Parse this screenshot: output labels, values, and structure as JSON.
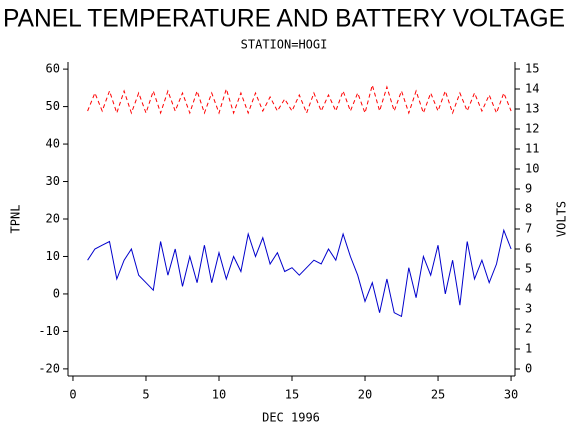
{
  "chart_data": {
    "type": "line",
    "title": "PANEL TEMPERATURE AND BATTERY VOLTAGE",
    "subtitle": "STATION=HOGI",
    "x_label": "DEC 1996",
    "y_label": "TPNL",
    "y2_label": "VOLTS",
    "x": [
      1,
      1.5,
      2,
      2.5,
      3,
      3.5,
      4,
      4.5,
      5,
      5.5,
      6,
      6.5,
      7,
      7.5,
      8,
      8.5,
      9,
      9.5,
      10,
      10.5,
      11,
      11.5,
      12,
      12.5,
      13,
      13.5,
      14,
      14.5,
      15,
      15.5,
      16,
      16.5,
      17,
      17.5,
      18,
      18.5,
      19,
      19.5,
      20,
      20.5,
      21,
      21.5,
      22,
      22.5,
      23,
      23.5,
      24,
      24.5,
      25,
      25.5,
      26,
      26.5,
      27,
      27.5,
      28,
      28.5,
      29,
      29.5,
      30
    ],
    "series": [
      {
        "color": "#0000cc",
        "values": [
          9,
          12,
          13,
          14,
          4,
          9,
          12,
          5,
          3,
          1,
          14,
          5,
          12,
          2,
          10,
          3,
          13,
          3,
          11,
          4,
          10,
          6,
          16,
          10,
          15,
          8,
          11,
          6,
          7,
          5,
          7,
          9,
          8,
          12,
          9,
          16,
          10,
          5,
          -2,
          3,
          -5,
          4,
          -5,
          -6,
          7,
          -1,
          10,
          5,
          13,
          0,
          9,
          -3,
          14,
          4,
          9,
          3,
          8,
          17,
          12
        ]
      },
      {
        "color": "#ff0000",
        "axis": "y2",
        "line_style": "dashed",
        "values": [
          12.9,
          13.8,
          12.9,
          13.9,
          12.8,
          13.9,
          12.8,
          13.8,
          12.8,
          13.9,
          12.8,
          13.9,
          12.9,
          13.8,
          12.8,
          13.9,
          12.8,
          13.8,
          12.8,
          14.0,
          12.8,
          13.8,
          12.8,
          13.8,
          12.9,
          13.6,
          12.9,
          13.5,
          12.9,
          13.7,
          12.8,
          13.8,
          12.9,
          13.7,
          12.9,
          13.9,
          12.9,
          13.8,
          12.8,
          14.2,
          12.9,
          14.1,
          12.9,
          13.9,
          12.8,
          13.9,
          12.8,
          13.8,
          12.9,
          13.9,
          12.8,
          13.8,
          12.9,
          13.8,
          12.9,
          13.7,
          12.8,
          13.8,
          12.9
        ]
      }
    ],
    "xlim": [
      -0.34,
      30.27
    ],
    "xticks": [
      0,
      5,
      10,
      15,
      20,
      25,
      30
    ],
    "ylim": [
      -21.9,
      61.9
    ],
    "yticks": [
      -20,
      -10,
      0,
      10,
      20,
      30,
      40,
      50,
      60
    ],
    "y2lim": [
      -0.35,
      15.35
    ],
    "y2ticks": [
      0,
      1,
      2,
      3,
      4,
      5,
      6,
      7,
      8,
      9,
      10,
      11,
      12,
      13,
      14,
      15
    ]
  }
}
